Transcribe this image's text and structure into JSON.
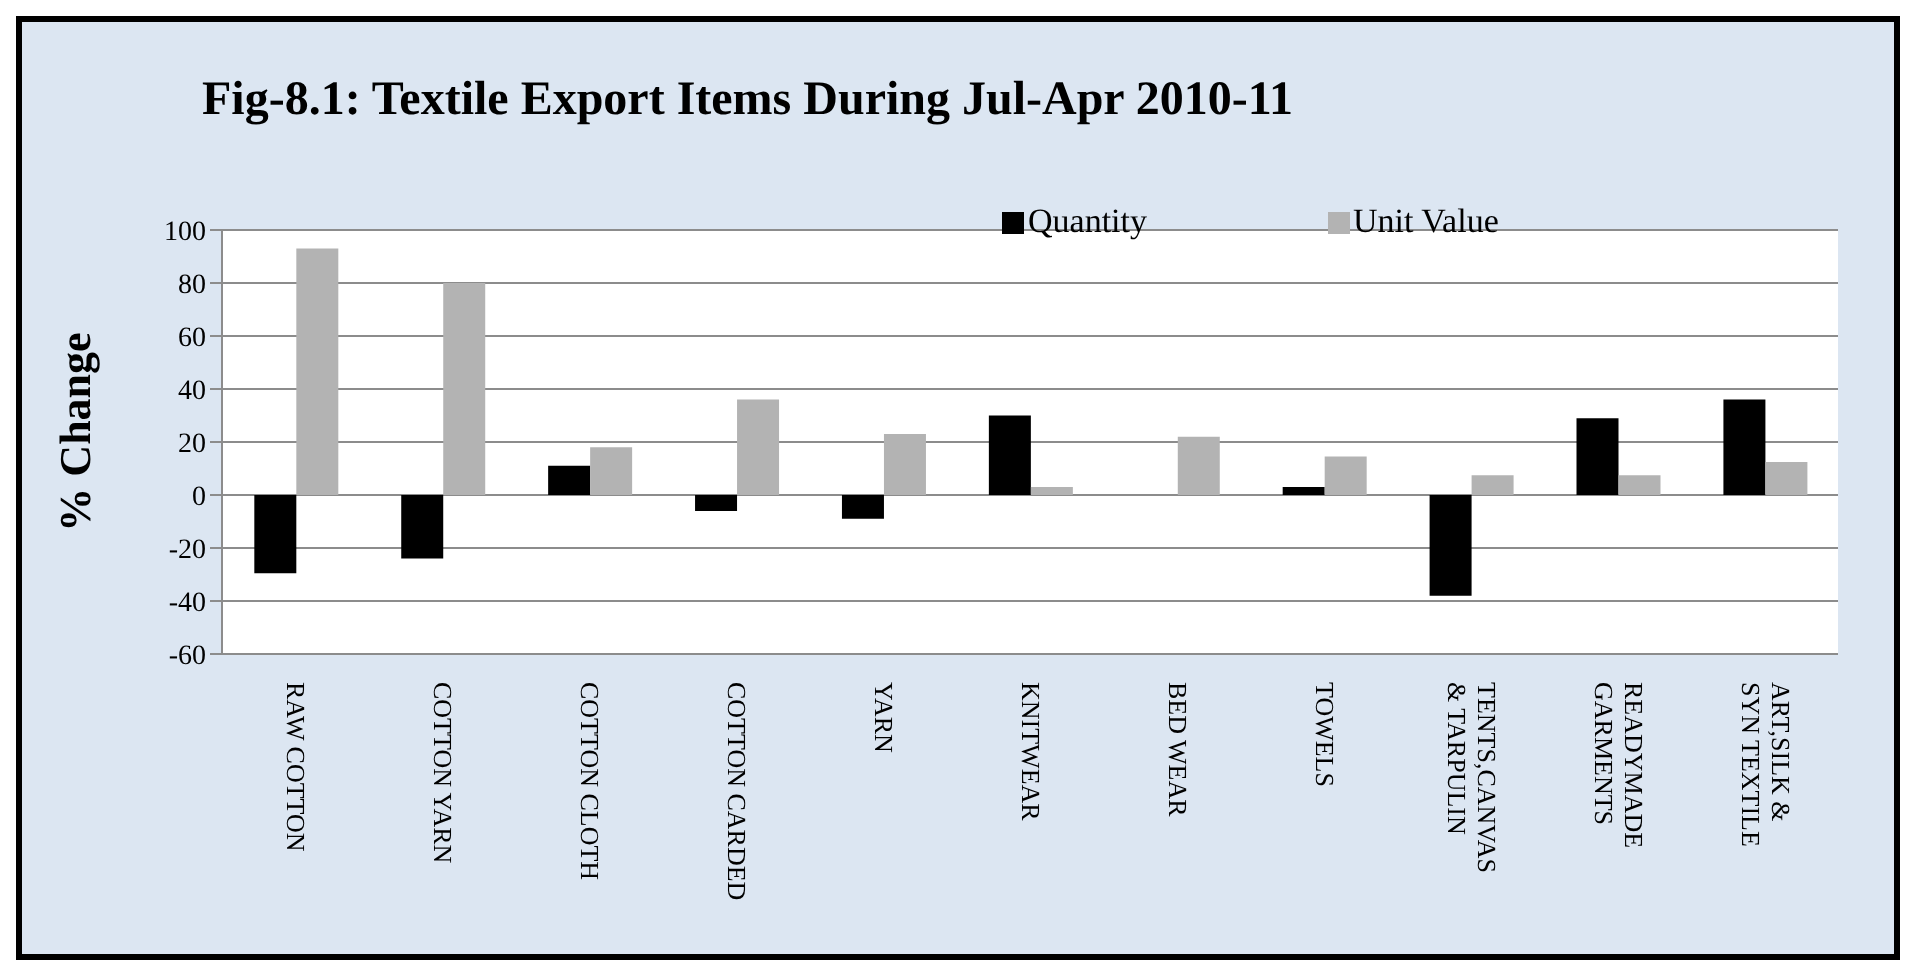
{
  "chart_data": {
    "type": "bar",
    "title": "Fig-8.1: Textile Export Items During Jul-Apr 2010-11",
    "ylabel": "% Change",
    "categories": [
      "RAW COTTON",
      "COTTON YARN",
      "COTTON CLOTH",
      "COTTON CARDED",
      "YARN",
      "KNITWEAR",
      "BED WEAR",
      "TOWELS",
      "TENTS,CANVAS\n& TARPULIN",
      "READYMADE\nGARMENTS",
      "ART,SILK &\nSYN TEXTILE"
    ],
    "series": [
      {
        "name": "Quantity",
        "color": "#000000",
        "values": [
          -29.5,
          -24,
          11,
          -6,
          -9,
          30,
          null,
          3,
          -38,
          29,
          36
        ]
      },
      {
        "name": "Unit Value",
        "color": "#b3b3b3",
        "values": [
          93,
          80,
          18,
          36,
          23,
          3,
          22,
          14.5,
          7.5,
          7.5,
          12.5
        ]
      }
    ],
    "ylim": [
      -60,
      100
    ],
    "yticks": [
      -60,
      -40,
      -20,
      0,
      20,
      40,
      60,
      80,
      100
    ],
    "grid": "y",
    "legend": "top"
  }
}
